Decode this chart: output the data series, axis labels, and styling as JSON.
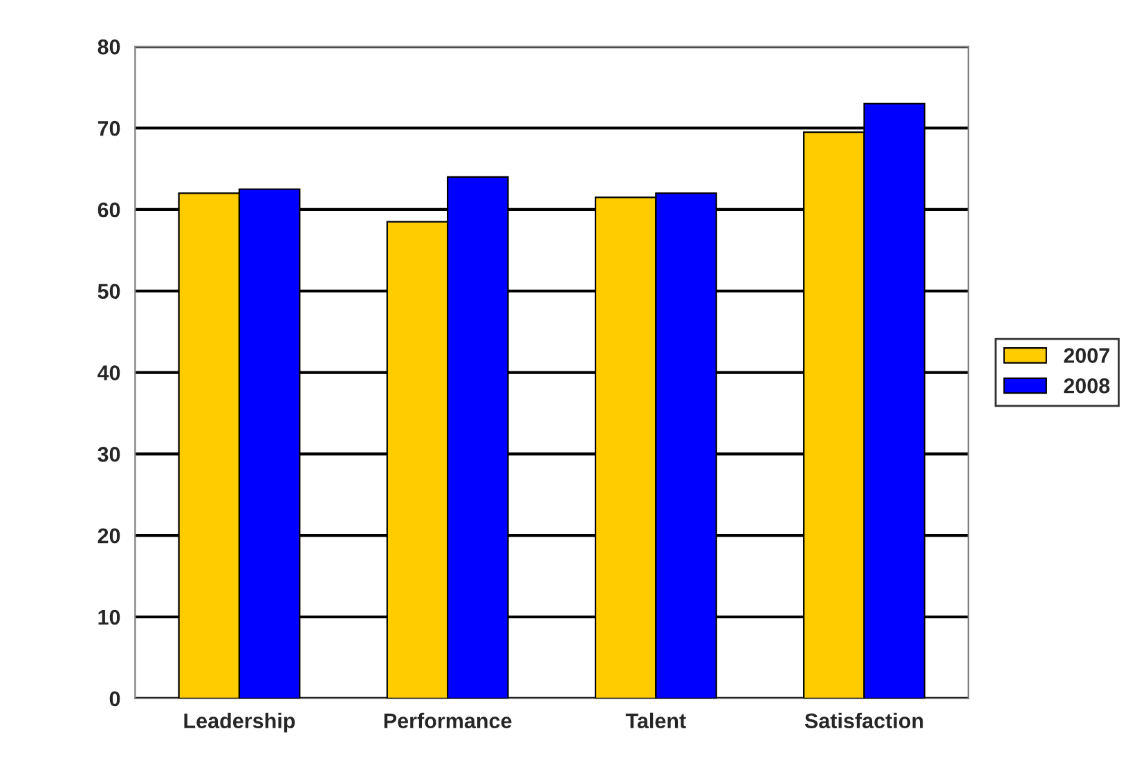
{
  "chart_data": {
    "type": "bar",
    "categories": [
      "Leadership",
      "Performance",
      "Talent",
      "Satisfaction"
    ],
    "series": [
      {
        "name": "2007",
        "color": "#ffcc00",
        "values": [
          62,
          58.5,
          61.5,
          69.5
        ]
      },
      {
        "name": "2008",
        "color": "#0000ff",
        "values": [
          62.5,
          64,
          62,
          73
        ]
      }
    ],
    "ylim": [
      0,
      80
    ],
    "yticks": [
      0,
      10,
      20,
      30,
      40,
      50,
      60,
      70,
      80
    ],
    "grid": "y",
    "legend": "right"
  }
}
